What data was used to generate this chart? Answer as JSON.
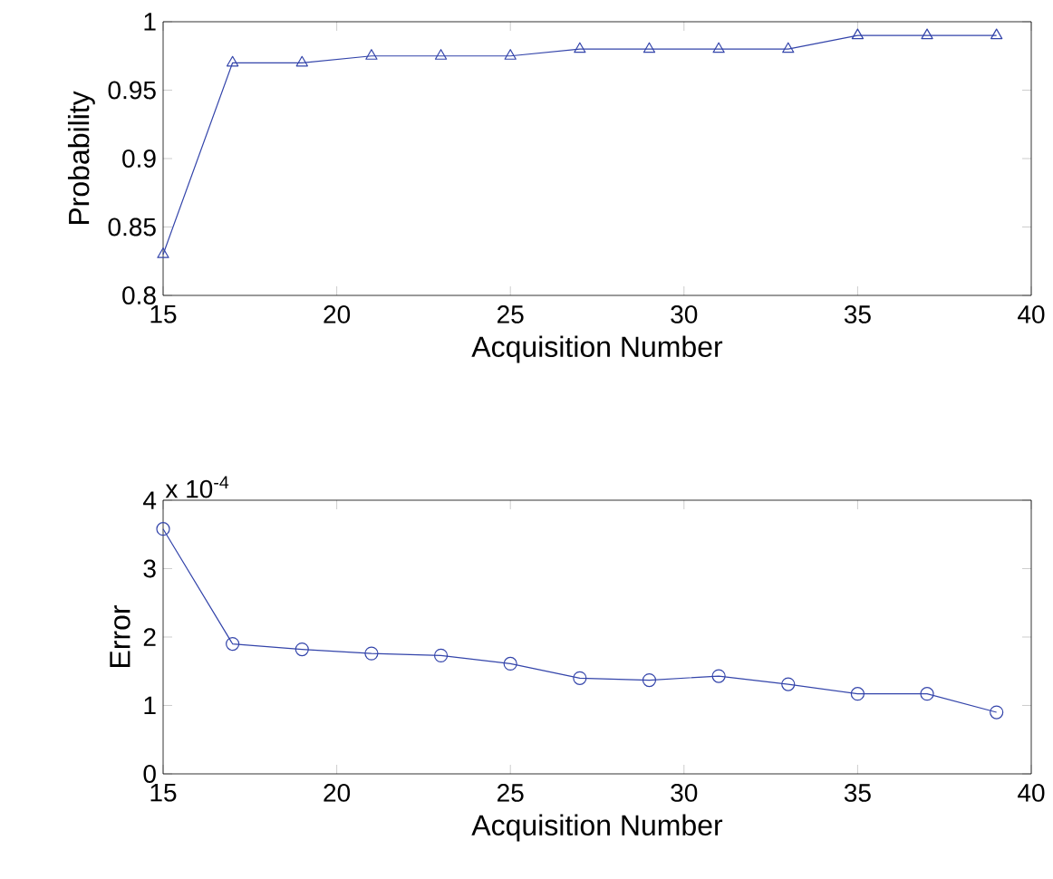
{
  "chart_data": [
    {
      "type": "line",
      "xlabel": "Acquisition Number",
      "ylabel": "Probability",
      "marker": "triangle",
      "x": [
        15,
        17,
        19,
        21,
        23,
        25,
        27,
        29,
        31,
        33,
        35,
        37,
        39
      ],
      "series": [
        {
          "color": "#3344aa",
          "values": [
            0.83,
            0.97,
            0.97,
            0.975,
            0.975,
            0.975,
            0.98,
            0.98,
            0.98,
            0.98,
            0.99,
            0.99,
            0.99
          ]
        }
      ],
      "xlim": [
        15,
        40
      ],
      "xticks": [
        15,
        20,
        25,
        30,
        35,
        40
      ],
      "ylim": [
        0.8,
        1
      ],
      "yticks": [
        0.8,
        0.85,
        0.9,
        0.95,
        1
      ]
    },
    {
      "type": "line",
      "xlabel": "Acquisition Number",
      "ylabel": "Error",
      "marker": "circle",
      "annotations": [
        "x 10$^{-4}$"
      ],
      "x": [
        15,
        17,
        19,
        21,
        23,
        25,
        27,
        29,
        31,
        33,
        35,
        37,
        39
      ],
      "series": [
        {
          "color": "#3344aa",
          "values": [
            3.58,
            1.9,
            1.82,
            1.76,
            1.73,
            1.61,
            1.4,
            1.37,
            1.43,
            1.31,
            1.17,
            1.17,
            0.9
          ]
        }
      ],
      "xlim": [
        15,
        40
      ],
      "xticks": [
        15,
        20,
        25,
        30,
        35,
        40
      ],
      "ylim": [
        0,
        4
      ],
      "yticks": [
        0,
        1,
        2,
        3,
        4
      ]
    }
  ]
}
